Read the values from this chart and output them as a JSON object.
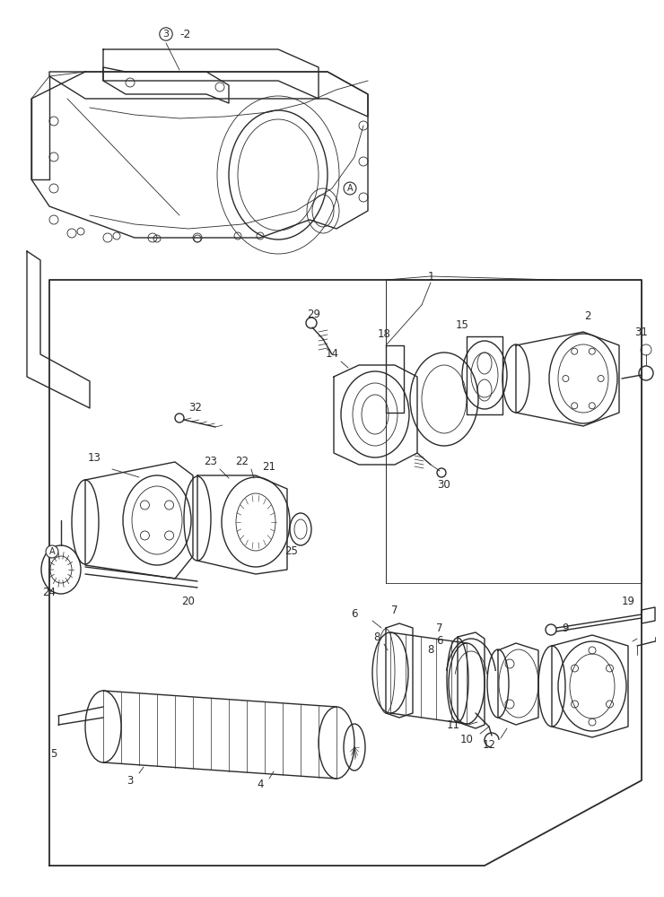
{
  "bg_color": "#ffffff",
  "line_color": "#2a2a2a",
  "figsize": [
    7.4,
    10.0
  ],
  "dpi": 100,
  "lw_main": 1.0,
  "lw_thin": 0.6,
  "lw_thick": 1.3,
  "fontsize_label": 8.5
}
